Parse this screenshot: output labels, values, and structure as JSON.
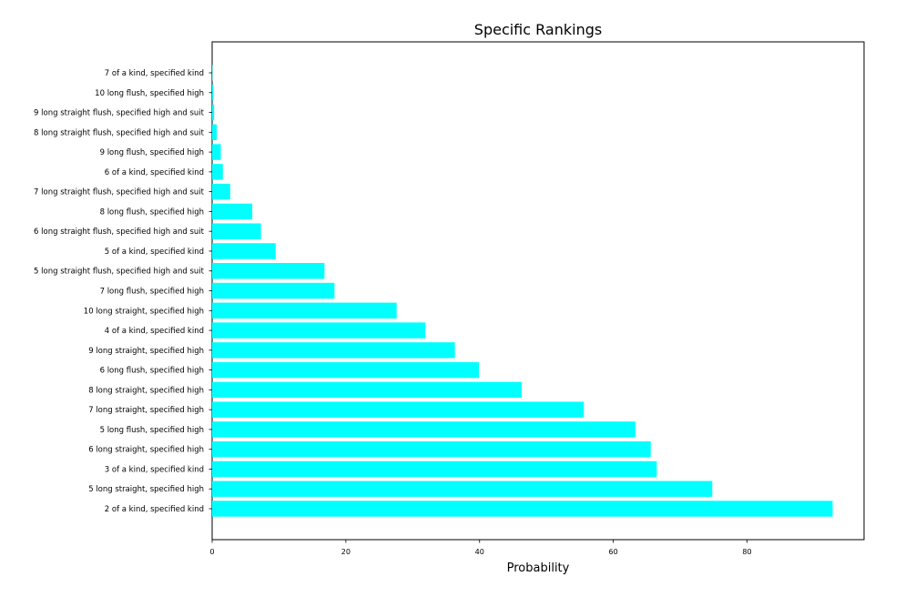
{
  "chart_data": {
    "type": "bar",
    "orientation": "horizontal",
    "title": "Specific Rankings",
    "xlabel": "Probability",
    "ylabel": "",
    "xlim": [
      0,
      97.5
    ],
    "xticks": [
      0,
      20,
      40,
      60,
      80
    ],
    "grid": false,
    "bar_color": "#00ffff",
    "categories": [
      "2 of a kind, specified kind",
      "5 long straight, specified high",
      "3 of a kind, specified kind",
      "6 long straight, specified high",
      "5 long flush, specified high",
      "7 long straight, specified high",
      "8 long straight, specified high",
      "6 long flush, specified high",
      "9 long straight, specified high",
      "4 of a kind, specified kind",
      "10 long straight, specified high",
      "7 long flush, specified high",
      "5 long straight flush, specified high and suit",
      "5 of a kind, specified kind",
      "6 long straight flush, specified high and suit",
      "8 long flush, specified high",
      "7 long straight flush, specified high and suit",
      "6 of a kind, specified kind",
      "9 long flush, specified high",
      "8 long straight flush, specified high and suit",
      "9 long straight flush, specified high and suit",
      "10 long flush, specified high",
      "7 of a kind, specified kind"
    ],
    "values": [
      92.8,
      74.8,
      66.5,
      65.6,
      63.3,
      55.6,
      46.3,
      39.9,
      36.3,
      31.9,
      27.6,
      18.3,
      16.8,
      9.5,
      7.3,
      6.0,
      2.7,
      1.6,
      1.3,
      0.7,
      0.3,
      0.2,
      0.05
    ]
  }
}
